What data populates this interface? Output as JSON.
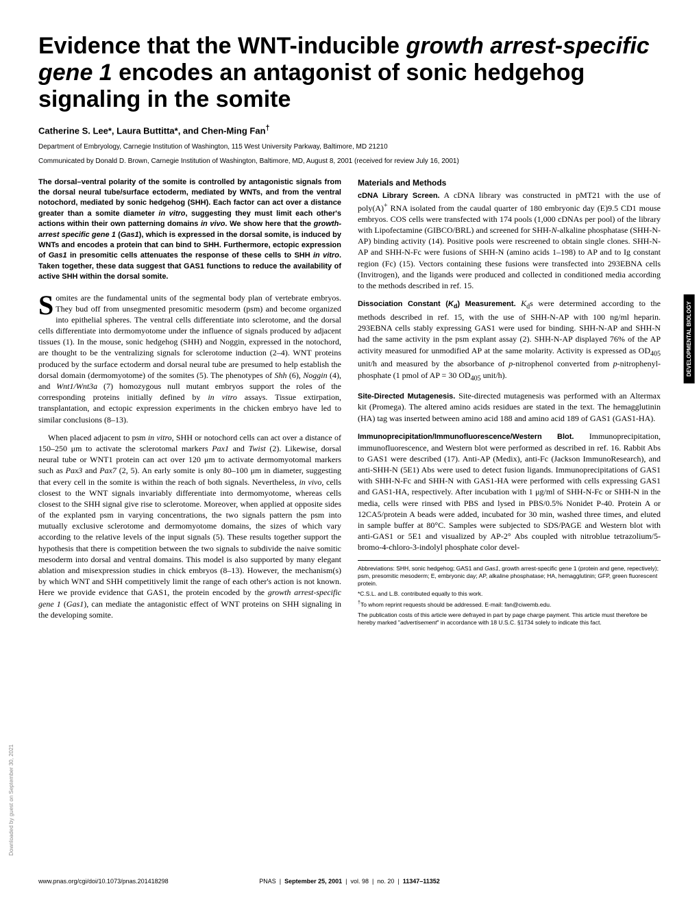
{
  "title_html": "Evidence that the WNT-inducible <i>growth arrest-specific gene 1</i> encodes an antagonist of sonic hedgehog signaling in the somite",
  "authors_html": "Catherine S. Lee*, Laura Buttitta*, and Chen-Ming Fan<sup>†</sup>",
  "affiliation": "Department of Embryology, Carnegie Institution of Washington, 115 West University Parkway, Baltimore, MD 21210",
  "communicated": "Communicated by Donald D. Brown, Carnegie Institution of Washington, Baltimore, MD, August 8, 2001 (received for review July 16, 2001)",
  "abstract_html": "The dorsal–ventral polarity of the somite is controlled by antagonistic signals from the dorsal neural tube/surface ectoderm, mediated by WNTs, and from the ventral notochord, mediated by sonic hedgehog (SHH). Each factor can act over a distance greater than a somite diameter <i>in vitro</i>, suggesting they must limit each other's actions within their own patterning domains <i>in vivo</i>. We show here that the <i>growth-arrest specific gene 1</i> (<i>Gas1</i>), which is expressed in the dorsal somite, is induced by WNTs and encodes a protein that can bind to SHH. Furthermore, ectopic expression of <i>Gas1</i> in presomitic cells attenuates the response of these cells to SHH <i>in vitro</i>. Taken together, these data suggest that GAS1 functions to reduce the availability of active SHH within the dorsal somite.",
  "intro_p1_html": "omites are the fundamental units of the segmental body plan of vertebrate embryos. They bud off from unsegmented presomitic mesoderm (psm) and become organized into epithelial spheres. The ventral cells differentiate into sclerotome, and the dorsal cells differentiate into dermomyotome under the influence of signals produced by adjacent tissues (1). In the mouse, sonic hedgehog (SHH) and Noggin, expressed in the notochord, are thought to be the ventralizing signals for sclerotome induction (2–4). WNT proteins produced by the surface ectoderm and dorsal neural tube are presumed to help establish the dorsal domain (dermomyotome) of the somites (5). The phenotypes of <i>Shh</i> (6), <i>Noggin</i> (4), and <i>Wnt1/Wnt3a</i> (7) homozygous null mutant embryos support the roles of the corresponding proteins initially defined by <i>in vitro</i> assays. Tissue extirpation, transplantation, and ectopic expression experiments in the chicken embryo have led to similar conclusions (8–13).",
  "intro_p2_html": "When placed adjacent to psm <i>in vitro</i>, SHH or notochord cells can act over a distance of 150–250 μm to activate the sclerotomal markers <i>Pax1</i> and <i>Twist</i> (2). Likewise, dorsal neural tube or WNT1 protein can act over 120 μm to activate dermomyotomal markers such as <i>Pax3</i> and <i>Pax7</i> (2, 5). An early somite is only 80–100 μm in diameter, suggesting that every cell in the somite is within the reach of both signals. Nevertheless, <i>in vivo</i>, cells closest to the WNT signals invariably differentiate into dermomyotome, whereas cells closest to the SHH signal give rise to sclerotome. Moreover, when applied at opposite sides of the explanted psm in varying concentrations, the two signals pattern the psm into mutually exclusive sclerotome and dermomyotome domains, the sizes of which vary according to the relative levels of the input signals (5). These results together support the hypothesis that there is competition between the two signals to subdivide the naive somitic mesoderm into dorsal and ventral domains. This model is also supported by many elegant ablation and misexpression studies in chick embryos (8–13). However, the mechanism(s) by which WNT and SHH competitively limit the range of each other's action is not known. Here we provide evidence that GAS1, the protein encoded by the <i>growth arrest-specific gene 1</i> (<i>Gas1</i>), can mediate the antagonistic effect of WNT proteins on SHH signaling in the developing somite.",
  "methods_heading": "Materials and Methods",
  "methods_sub1_title": "cDNA Library Screen.",
  "methods_sub1_html": "A cDNA library was constructed in pMT21 with the use of poly(A)<sup>+</sup> RNA isolated from the caudal quarter of 180 embryonic day (E)9.5 CD1 mouse embryos. COS cells were transfected with 174 pools (1,000 cDNAs per pool) of the library with Lipofectamine (GIBCO/BRL) and screened for SHH-<i>N</i>-alkaline phosphatase (SHH-N-AP) binding activity (14). Positive pools were rescreened to obtain single clones. SHH-N-AP and SHH-N-Fc were fusions of SHH-N (amino acids 1–198) to AP and to Ig constant region (Fc) (15). Vectors containing these fusions were transfected into 293EBNA cells (Invitrogen), and the ligands were produced and collected in conditioned media according to the methods described in ref. 15.",
  "methods_sub2_title_html": "Dissociation Constant (<i>K</i><sub>d</sub>) Measurement.",
  "methods_sub2_html": "<i>K</i><sub>d</sub>s were determined according to the methods described in ref. 15, with the use of SHH-N-AP with 100 ng/ml heparin. 293EBNA cells stably expressing GAS1 were used for binding. SHH-N-AP and SHH-N had the same activity in the psm explant assay (2). SHH-N-AP displayed 76% of the AP activity measured for unmodified AP at the same molarity. Activity is expressed as OD<sub>405</sub> unit/h and measured by the absorbance of <i>p</i>-nitrophenol converted from <i>p</i>-nitrophenyl-phosphate (1 pmol of AP = 30 OD<sub>405</sub> unit/h).",
  "methods_sub3_title": "Site-Directed Mutagenesis.",
  "methods_sub3_html": "Site-directed mutagenesis was performed with an Altermax kit (Promega). The altered amino acids residues are stated in the text. The hemagglutinin (HA) tag was inserted between amino acid 188 and amino acid 189 of GAS1 (GAS1-HA).",
  "methods_sub4_title": "Immunoprecipitation/Immunofluorescence/Western Blot.",
  "methods_sub4_html": "Immunoprecipitation, immunofluorescence, and Western blot were performed as described in ref. 16. Rabbit Abs to GAS1 were described (17). Anti-AP (Medix), anti-Fc (Jackson ImmunoResearch), and anti-SHH-N (5E1) Abs were used to detect fusion ligands. Immunoprecipitations of GAS1 with SHH-N-Fc and SHH-N with GAS1-HA were performed with cells expressing GAS1 and GAS1-HA, respectively. After incubation with 1 μg/ml of SHH-N-Fc or SHH-N in the media, cells were rinsed with PBS and lysed in PBS/0.5% Nonidet P-40. Protein A or 12CA5/protein A beads were added, incubated for 30 min, washed three times, and eluted in sample buffer at 80°C. Samples were subjected to SDS/PAGE and Western blot with anti-GAS1 or 5E1 and visualized by AP-2° Abs coupled with nitroblue tetrazolium/5-bromo-4-chloro-3-indolyl phosphate color devel-",
  "footnotes": {
    "abbr_html": "Abbreviations: SHH, sonic hedgehog; GAS1 and <i>Gas1</i>, growth arrest-specific gene 1 (protein and gene, repectively); psm, presomitic mesoderm; E, embryonic day; AP, alkaline phosphatase; HA, hemagglutinin; GFP, green fluorescent protein.",
    "equal": "*C.S.L. and L.B. contributed equally to this work.",
    "corr_html": "<sup>†</sup>To whom reprint requests should be addressed. E-mail: fan@ciwemb.edu.",
    "pub_html": "The publication costs of this article were defrayed in part by page charge payment. This article must therefore be hereby marked \"<i>advertisement</i>\" in accordance with 18 U.S.C. §1734 solely to indicate this fact."
  },
  "footer": {
    "left": "www.pnas.org/cgi/doi/10.1073/pnas.201418298",
    "center_html": "PNAS &nbsp;|&nbsp; <b>September 25, 2001</b> &nbsp;|&nbsp; vol. 98 &nbsp;|&nbsp; no. 20 &nbsp;|&nbsp; <b>11347–11352</b>"
  },
  "side_tab": "DEVELOPMENTAL BIOLOGY",
  "side_text": "Downloaded by guest on September 30, 2021"
}
